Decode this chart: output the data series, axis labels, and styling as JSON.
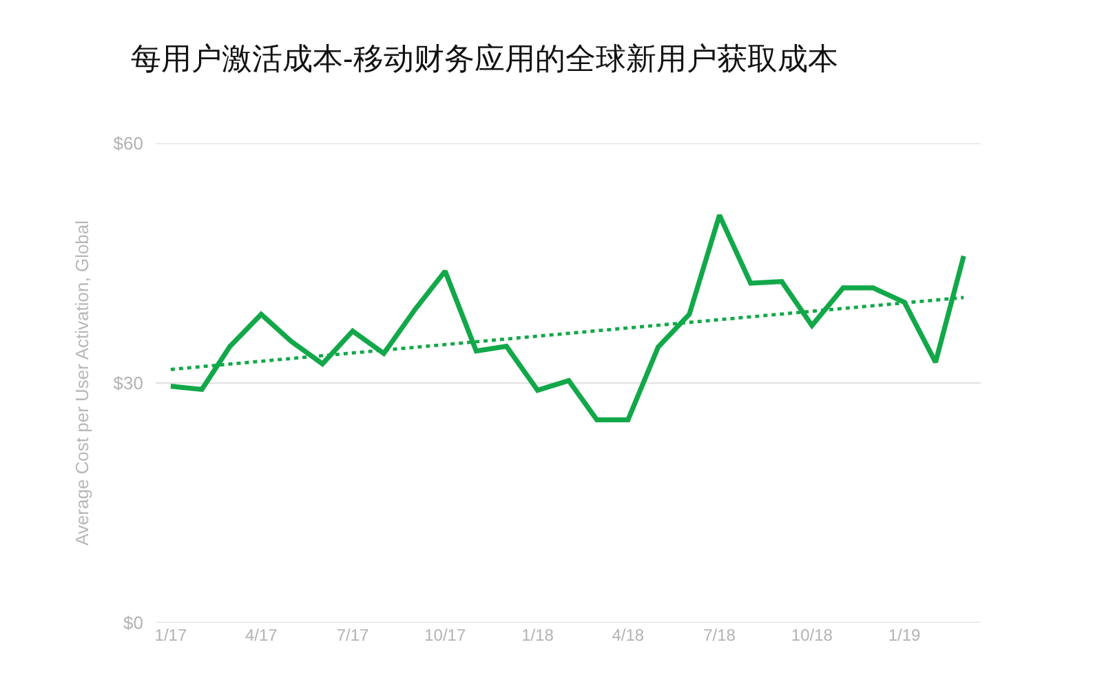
{
  "chart_data": {
    "type": "line",
    "title": "每用户激活成本-移动财务应用的全球新用户获取成本",
    "ylabel": "Average Cost per User Activation, Global",
    "x": [
      "2017-01",
      "2017-02",
      "2017-03",
      "2017-04",
      "2017-05",
      "2017-06",
      "2017-07",
      "2017-08",
      "2017-09",
      "2017-10",
      "2017-11",
      "2017-12",
      "2018-01",
      "2018-02",
      "2018-03",
      "2018-04",
      "2018-05",
      "2018-06",
      "2018-07",
      "2018-08",
      "2018-09",
      "2018-10",
      "2018-11",
      "2018-12",
      "2019-01",
      "2019-02",
      "2019-03"
    ],
    "series": [
      {
        "color": "#12a84a",
        "values": [
          29.6,
          29.2,
          34.6,
          38.6,
          35.2,
          32.4,
          36.5,
          33.7,
          39.2,
          44.0,
          34.0,
          34.6,
          29.1,
          30.3,
          25.4,
          25.4,
          34.5,
          38.6,
          51.0,
          42.5,
          42.7,
          37.2,
          41.9,
          41.9,
          40.1,
          32.6,
          45.9
        ]
      },
      {
        "type": "line",
        "color": "#12a84a",
        "x": [
          "2017-01",
          "2019-03"
        ],
        "values": [
          31.7,
          40.7
        ],
        "line_style": "dotted"
      }
    ],
    "xlim": [
      "2016-12-17",
      "2019-03-18"
    ],
    "xticks": [
      {
        "value": "2017-01",
        "label": "1/17"
      },
      {
        "value": "2017-04",
        "label": "4/17"
      },
      {
        "value": "2017-07",
        "label": "7/17"
      },
      {
        "value": "2017-10",
        "label": "10/17"
      },
      {
        "value": "2018-01",
        "label": "1/18"
      },
      {
        "value": "2018-04",
        "label": "4/18"
      },
      {
        "value": "2018-07",
        "label": "7/18"
      },
      {
        "value": "2018-10",
        "label": "10/18"
      },
      {
        "value": "2019-01",
        "label": "1/19"
      }
    ],
    "ylim": [
      0,
      60
    ],
    "yticks": [
      {
        "value": 0,
        "label": "$0"
      },
      {
        "value": 30,
        "label": "$30"
      },
      {
        "value": 60,
        "label": "$60"
      }
    ],
    "grid": "y",
    "line_style": "solid",
    "marker": "none"
  }
}
